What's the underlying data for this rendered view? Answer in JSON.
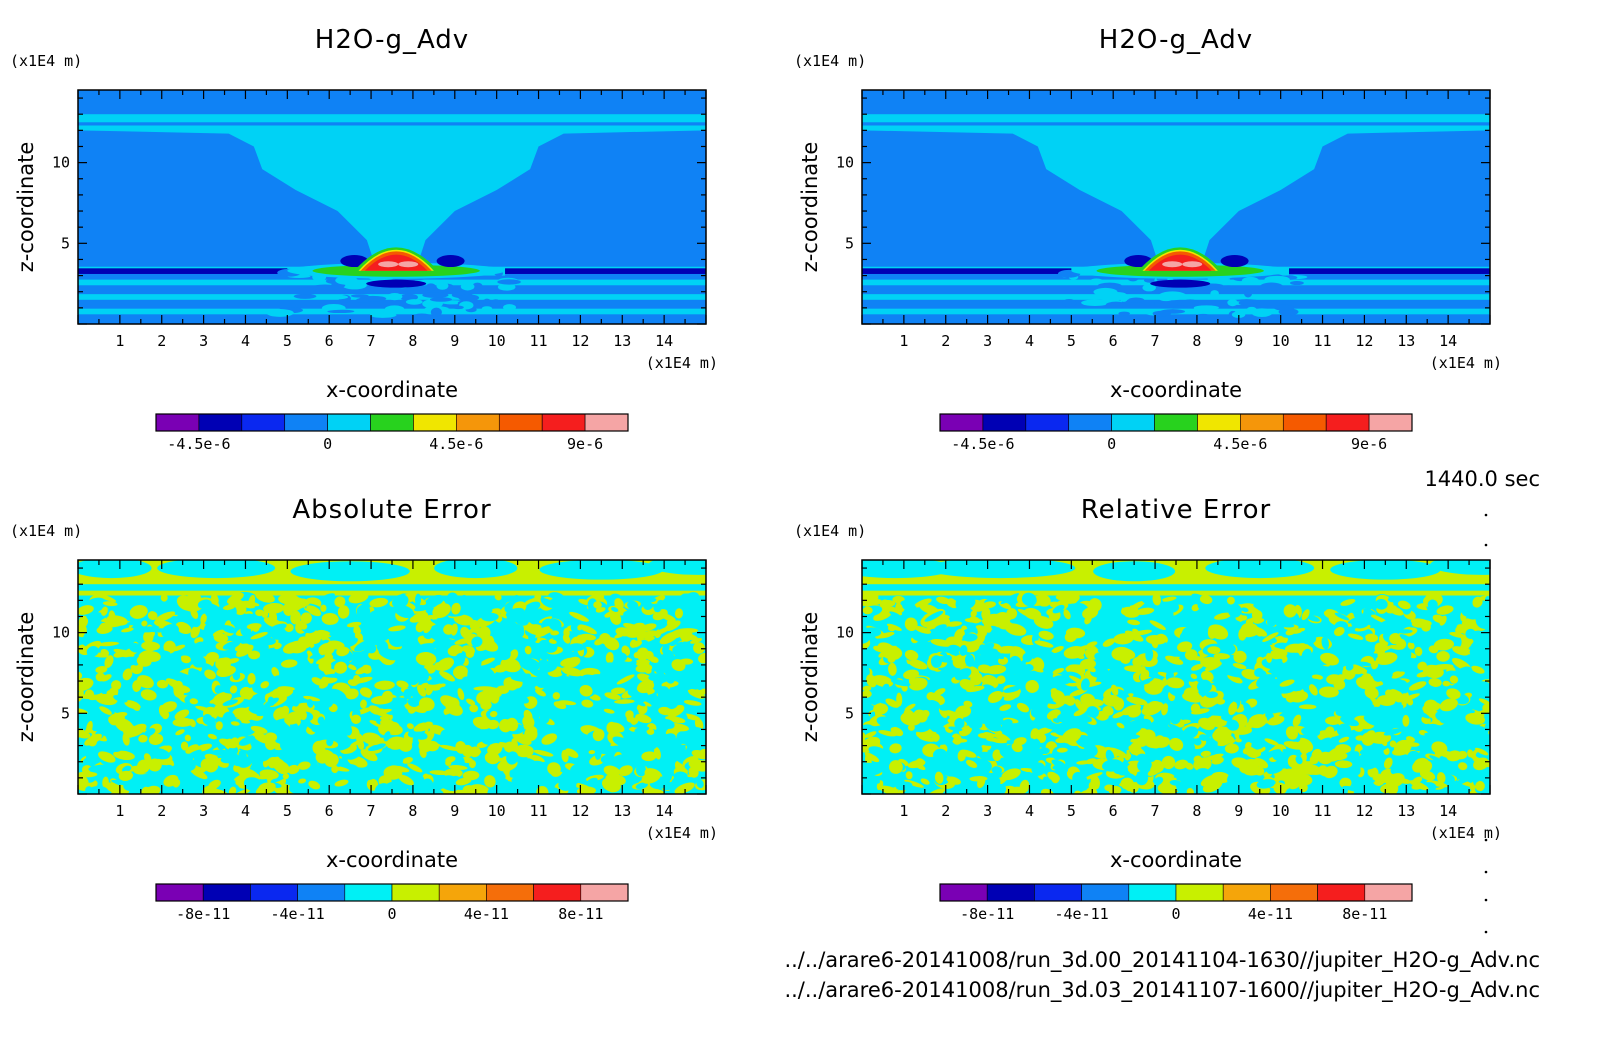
{
  "chart_data": [
    {
      "type": "heatmap",
      "title": "H2O-g_Adv",
      "xlabel": "x-coordinate",
      "ylabel": "z-coordinate",
      "x_unit": "(x1E4 m)",
      "y_unit": "(x1E4 m)",
      "x_ticks": [
        "1",
        "2",
        "3",
        "4",
        "5",
        "6",
        "7",
        "8",
        "9",
        "10",
        "11",
        "12",
        "13",
        "14"
      ],
      "y_ticks": [
        "5",
        "10"
      ],
      "xlim": [
        0,
        15
      ],
      "ylim": [
        0,
        14.5
      ],
      "colorbar": {
        "labels": [
          "-4.5e-6",
          "0",
          "4.5e-6",
          "9e-6"
        ],
        "label_values": [
          -4.5e-06,
          0,
          4.5e-06,
          9e-06
        ],
        "levels": [
          -6e-06,
          -4.5e-06,
          -3e-06,
          -1.5e-06,
          0,
          1.5e-06,
          3e-06,
          4.5e-06,
          6e-06,
          7.5e-06,
          9e-06,
          1.05e-05
        ],
        "colors": [
          "#7a00b4",
          "#0000b4",
          "#0a28f0",
          "#0f82f5",
          "#00d2f5",
          "#28d21e",
          "#f0e600",
          "#f5960a",
          "#f55a00",
          "#f51e1e",
          "#f5a5a5"
        ]
      }
    },
    {
      "type": "heatmap",
      "title": "H2O-g_Adv",
      "xlabel": "x-coordinate",
      "ylabel": "z-coordinate",
      "x_unit": "(x1E4 m)",
      "y_unit": "(x1E4 m)",
      "x_ticks": [
        "1",
        "2",
        "3",
        "4",
        "5",
        "6",
        "7",
        "8",
        "9",
        "10",
        "11",
        "12",
        "13",
        "14"
      ],
      "y_ticks": [
        "5",
        "10"
      ],
      "xlim": [
        0,
        15
      ],
      "ylim": [
        0,
        14.5
      ],
      "colorbar": {
        "labels": [
          "-4.5e-6",
          "0",
          "4.5e-6",
          "9e-6"
        ],
        "label_values": [
          -4.5e-06,
          0,
          4.5e-06,
          9e-06
        ],
        "levels": [
          -6e-06,
          -4.5e-06,
          -3e-06,
          -1.5e-06,
          0,
          1.5e-06,
          3e-06,
          4.5e-06,
          6e-06,
          7.5e-06,
          9e-06,
          1.05e-05
        ],
        "colors": [
          "#7a00b4",
          "#0000b4",
          "#0a28f0",
          "#0f82f5",
          "#00d2f5",
          "#28d21e",
          "#f0e600",
          "#f5960a",
          "#f55a00",
          "#f51e1e",
          "#f5a5a5"
        ]
      }
    },
    {
      "type": "heatmap",
      "title": "Absolute Error",
      "xlabel": "x-coordinate",
      "ylabel": "z-coordinate",
      "x_unit": "(x1E4 m)",
      "y_unit": "(x1E4 m)",
      "x_ticks": [
        "1",
        "2",
        "3",
        "4",
        "5",
        "6",
        "7",
        "8",
        "9",
        "10",
        "11",
        "12",
        "13",
        "14"
      ],
      "y_ticks": [
        "5",
        "10"
      ],
      "xlim": [
        0,
        15
      ],
      "ylim": [
        0,
        14.5
      ],
      "colorbar": {
        "labels": [
          "-8e-11",
          "-4e-11",
          "0",
          "4e-11",
          "8e-11"
        ],
        "label_values": [
          -8e-11,
          -4e-11,
          0,
          4e-11,
          8e-11
        ],
        "levels": [
          -1e-10,
          -8e-11,
          -6e-11,
          -4e-11,
          -2e-11,
          0,
          2e-11,
          4e-11,
          6e-11,
          8e-11,
          1e-10
        ],
        "colors": [
          "#7a00b4",
          "#0000b4",
          "#0a28f0",
          "#0f82f5",
          "#00f0f5",
          "#c8f000",
          "#f5a50a",
          "#f56e0a",
          "#f51e1e",
          "#f5a5a5"
        ]
      }
    },
    {
      "type": "heatmap",
      "title": "Relative Error",
      "xlabel": "x-coordinate",
      "ylabel": "z-coordinate",
      "x_unit": "(x1E4 m)",
      "y_unit": "(x1E4 m)",
      "x_ticks": [
        "1",
        "2",
        "3",
        "4",
        "5",
        "6",
        "7",
        "8",
        "9",
        "10",
        "11",
        "12",
        "13",
        "14"
      ],
      "y_ticks": [
        "5",
        "10"
      ],
      "xlim": [
        0,
        15
      ],
      "ylim": [
        0,
        14.5
      ],
      "colorbar": {
        "labels": [
          "-8e-11",
          "-4e-11",
          "0",
          "4e-11",
          "8e-11"
        ],
        "label_values": [
          -8e-11,
          -4e-11,
          0,
          4e-11,
          8e-11
        ],
        "levels": [
          -1e-10,
          -8e-11,
          -6e-11,
          -4e-11,
          -2e-11,
          0,
          2e-11,
          4e-11,
          6e-11,
          8e-11,
          1e-10
        ],
        "colors": [
          "#7a00b4",
          "#0000b4",
          "#0a28f0",
          "#0f82f5",
          "#00f0f5",
          "#c8f000",
          "#f5a50a",
          "#f56e0a",
          "#f51e1e",
          "#f5a5a5"
        ]
      }
    }
  ],
  "time_label": "1440.0 sec",
  "file_paths": [
    "../../arare6-20141008/run_3d.00_20141104-1630//jupiter_H2O-g_Adv.nc",
    "../../arare6-20141008/run_3d.03_20141107-1600//jupiter_H2O-g_Adv.nc"
  ]
}
